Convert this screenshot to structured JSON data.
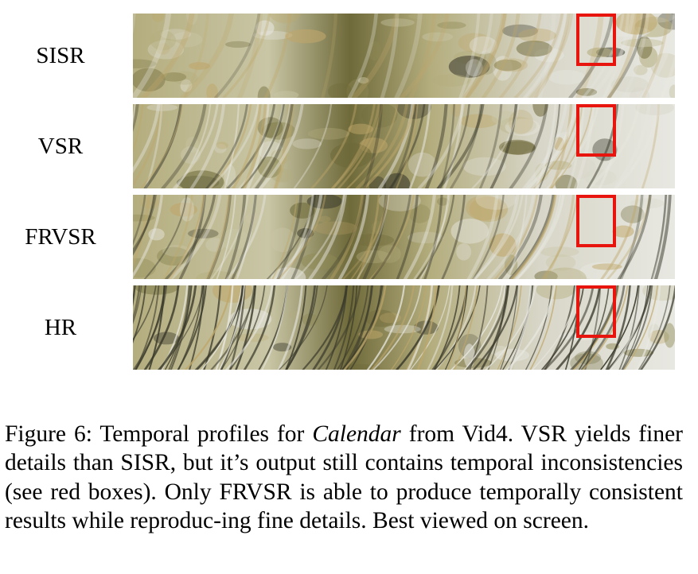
{
  "figure": {
    "rows": [
      {
        "label": "SISR",
        "texture": "smooth"
      },
      {
        "label": "VSR",
        "texture": "medium"
      },
      {
        "label": "FRVSR",
        "texture": "medium"
      },
      {
        "label": "HR",
        "texture": "sharp"
      }
    ],
    "highlight_color": "#e8150e"
  },
  "caption": {
    "prefix": "Figure 6: Temporal profiles for ",
    "italic": "Calendar",
    "suffix": " from Vid4. VSR yields finer details than SISR, but it’s output still contains temporal inconsistencies (see red boxes). Only FRVSR is able to produce temporally consistent results while reproduc-ing fine details. Best viewed on screen."
  },
  "colors": {
    "palette": [
      "#c9c6a6",
      "#b4ad7e",
      "#8f8a56",
      "#6f6a3a",
      "#d8d6c8",
      "#e8e8e2",
      "#3a3a2c",
      "#bfa76a"
    ]
  }
}
